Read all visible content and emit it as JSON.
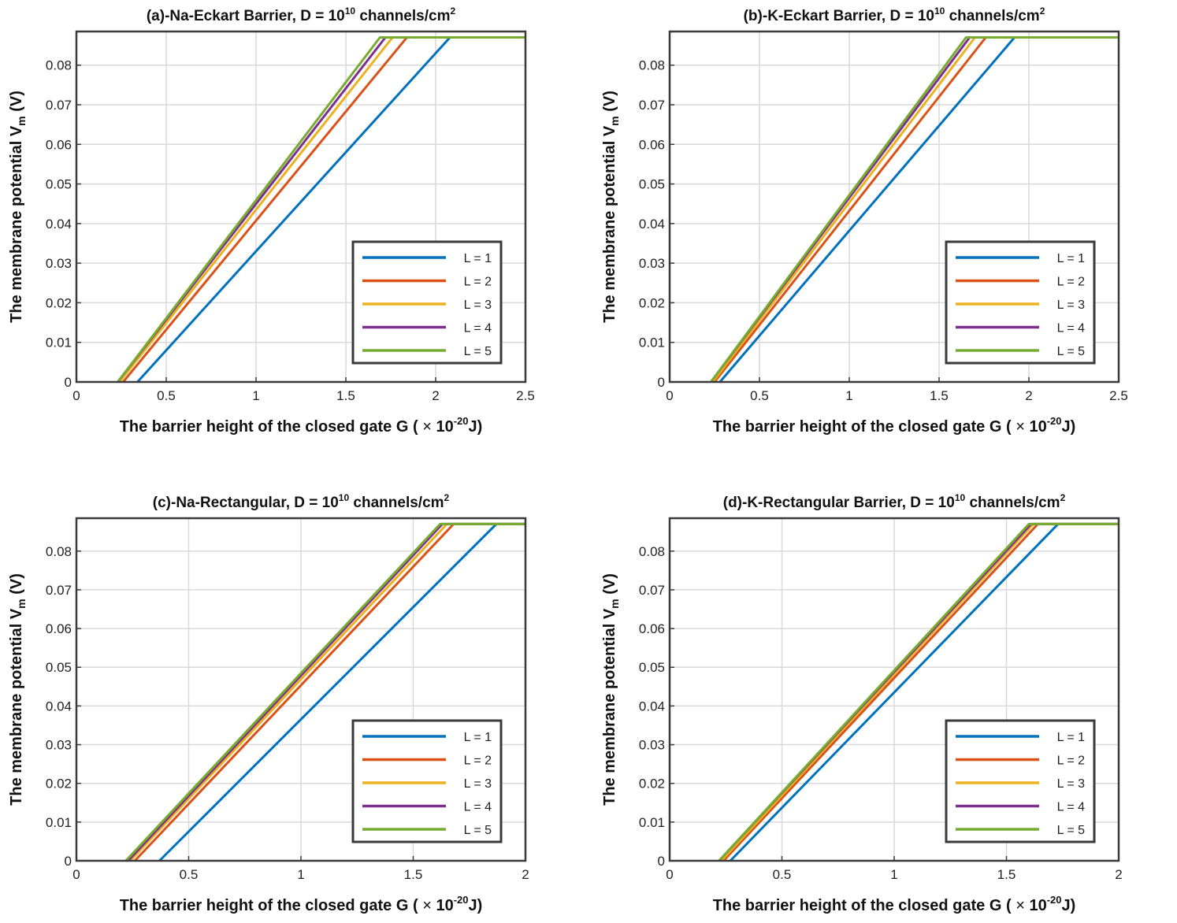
{
  "chart_data": [
    {
      "type": "line",
      "title": {
        "prefix": "(a)-Na-Eckart Barrier,  D = 10",
        "exponent": "10",
        "suffix": " channels/cm",
        "suffix_exp": "2"
      },
      "xlabel": {
        "main": "The barrier height of the closed gate G (",
        "times": "×",
        "base": " 10",
        "exponent": "-20",
        "unit": "J)"
      },
      "ylabel": {
        "main": "The membrane potential  V",
        "sub": "m",
        "unit": "  (V)"
      },
      "xlim": [
        0,
        2.5
      ],
      "ylim": [
        0,
        0.0885
      ],
      "xticks": [
        0,
        0.5,
        1,
        1.5,
        2,
        2.5
      ],
      "xtick_labels": [
        "0",
        "0.5",
        "1",
        "1.5",
        "2",
        "2.5"
      ],
      "yticks": [
        0,
        0.01,
        0.02,
        0.03,
        0.04,
        0.05,
        0.06,
        0.07,
        0.08
      ],
      "ytick_labels": [
        "0",
        "0.01",
        "0.02",
        "0.03",
        "0.04",
        "0.05",
        "0.06",
        "0.07",
        "0.08"
      ],
      "series": [
        {
          "name": "L = 1",
          "color": "#0072BD",
          "x": [
            0.34,
            2.08,
            2.5
          ],
          "y": [
            0,
            0.087,
            0.087
          ]
        },
        {
          "name": "L = 2",
          "color": "#D95319",
          "x": [
            0.26,
            1.84,
            2.5
          ],
          "y": [
            0,
            0.087,
            0.087
          ]
        },
        {
          "name": "L = 3",
          "color": "#EDB120",
          "x": [
            0.24,
            1.76,
            2.5
          ],
          "y": [
            0,
            0.087,
            0.087
          ]
        },
        {
          "name": "L = 4",
          "color": "#7E2F8E",
          "x": [
            0.23,
            1.72,
            2.5
          ],
          "y": [
            0,
            0.087,
            0.087
          ]
        },
        {
          "name": "L = 5",
          "color": "#77AC30",
          "x": [
            0.23,
            1.69,
            2.5
          ],
          "y": [
            0,
            0.087,
            0.087
          ]
        }
      ]
    },
    {
      "type": "line",
      "title": {
        "prefix": "(b)-K-Eckart Barrier,  D = 10",
        "exponent": "10",
        "suffix": " channels/cm",
        "suffix_exp": "2"
      },
      "xlabel": {
        "main": "The barrier height of the closed gate G (",
        "times": "×",
        "base": " 10",
        "exponent": "-20",
        "unit": "J)"
      },
      "ylabel": {
        "main": "The membrane potential  V",
        "sub": "m",
        "unit": "  (V)"
      },
      "xlim": [
        0,
        2.5
      ],
      "ylim": [
        0,
        0.0885
      ],
      "xticks": [
        0,
        0.5,
        1,
        1.5,
        2,
        2.5
      ],
      "xtick_labels": [
        "0",
        "0.5",
        "1",
        "1.5",
        "2",
        "2.5"
      ],
      "yticks": [
        0,
        0.01,
        0.02,
        0.03,
        0.04,
        0.05,
        0.06,
        0.07,
        0.08
      ],
      "ytick_labels": [
        "0",
        "0.01",
        "0.02",
        "0.03",
        "0.04",
        "0.05",
        "0.06",
        "0.07",
        "0.08"
      ],
      "series": [
        {
          "name": "L = 1",
          "color": "#0072BD",
          "x": [
            0.28,
            1.92,
            2.5
          ],
          "y": [
            0,
            0.087,
            0.087
          ]
        },
        {
          "name": "L = 2",
          "color": "#D95319",
          "x": [
            0.25,
            1.76,
            2.5
          ],
          "y": [
            0,
            0.087,
            0.087
          ]
        },
        {
          "name": "L = 3",
          "color": "#EDB120",
          "x": [
            0.24,
            1.7,
            2.5
          ],
          "y": [
            0,
            0.087,
            0.087
          ]
        },
        {
          "name": "L = 4",
          "color": "#7E2F8E",
          "x": [
            0.23,
            1.67,
            2.5
          ],
          "y": [
            0,
            0.087,
            0.087
          ]
        },
        {
          "name": "L = 5",
          "color": "#77AC30",
          "x": [
            0.23,
            1.65,
            2.5
          ],
          "y": [
            0,
            0.087,
            0.087
          ]
        }
      ]
    },
    {
      "type": "line",
      "title": {
        "prefix": "(c)-Na-Rectangular,  D = 10",
        "exponent": "10",
        "suffix": " channels/cm",
        "suffix_exp": "2"
      },
      "xlabel": {
        "main": "The barrier height of the closed gate G (",
        "times": "×",
        "base": " 10",
        "exponent": "-20",
        "unit": "J)"
      },
      "ylabel": {
        "main": "The membrane potential  V",
        "sub": "m",
        "unit": "  (V)"
      },
      "xlim": [
        0,
        2
      ],
      "ylim": [
        0,
        0.0885
      ],
      "xticks": [
        0,
        0.5,
        1,
        1.5,
        2
      ],
      "xtick_labels": [
        "0",
        "0.5",
        "1",
        "1.5",
        "2"
      ],
      "yticks": [
        0,
        0.01,
        0.02,
        0.03,
        0.04,
        0.05,
        0.06,
        0.07,
        0.08
      ],
      "ytick_labels": [
        "0",
        "0.01",
        "0.02",
        "0.03",
        "0.04",
        "0.05",
        "0.06",
        "0.07",
        "0.08"
      ],
      "series": [
        {
          "name": "L = 1",
          "color": "#0072BD",
          "x": [
            0.37,
            1.87,
            2.0
          ],
          "y": [
            0,
            0.087,
            0.087
          ]
        },
        {
          "name": "L = 2",
          "color": "#D95319",
          "x": [
            0.26,
            1.68,
            2.0
          ],
          "y": [
            0,
            0.087,
            0.087
          ]
        },
        {
          "name": "L = 3",
          "color": "#EDB120",
          "x": [
            0.24,
            1.65,
            2.0
          ],
          "y": [
            0,
            0.087,
            0.087
          ]
        },
        {
          "name": "L = 4",
          "color": "#7E2F8E",
          "x": [
            0.23,
            1.63,
            2.0
          ],
          "y": [
            0,
            0.087,
            0.087
          ]
        },
        {
          "name": "L = 5",
          "color": "#77AC30",
          "x": [
            0.22,
            1.62,
            2.0
          ],
          "y": [
            0,
            0.087,
            0.087
          ]
        }
      ]
    },
    {
      "type": "line",
      "title": {
        "prefix": "(d)-K-Rectangular Barrier,  D = 10",
        "exponent": "10",
        "suffix": " channels/cm",
        "suffix_exp": "2"
      },
      "xlabel": {
        "main": "The barrier height of the closed gate G (",
        "times": "×",
        "base": " 10",
        "exponent": "-20",
        "unit": "J)"
      },
      "ylabel": {
        "main": "The membrane potential  V",
        "sub": "m",
        "unit": "  (V)"
      },
      "xlim": [
        0,
        2
      ],
      "ylim": [
        0,
        0.0885
      ],
      "xticks": [
        0,
        0.5,
        1,
        1.5,
        2
      ],
      "xtick_labels": [
        "0",
        "0.5",
        "1",
        "1.5",
        "2"
      ],
      "yticks": [
        0,
        0.01,
        0.02,
        0.03,
        0.04,
        0.05,
        0.06,
        0.07,
        0.08
      ],
      "ytick_labels": [
        "0",
        "0.01",
        "0.02",
        "0.03",
        "0.04",
        "0.05",
        "0.06",
        "0.07",
        "0.08"
      ],
      "series": [
        {
          "name": "L = 1",
          "color": "#0072BD",
          "x": [
            0.27,
            1.73,
            2.0
          ],
          "y": [
            0,
            0.087,
            0.087
          ]
        },
        {
          "name": "L = 2",
          "color": "#D95319",
          "x": [
            0.24,
            1.64,
            2.0
          ],
          "y": [
            0,
            0.087,
            0.087
          ]
        },
        {
          "name": "L = 3",
          "color": "#EDB120",
          "x": [
            0.23,
            1.62,
            2.0
          ],
          "y": [
            0,
            0.087,
            0.087
          ]
        },
        {
          "name": "L = 4",
          "color": "#7E2F8E",
          "x": [
            0.22,
            1.61,
            2.0
          ],
          "y": [
            0,
            0.087,
            0.087
          ]
        },
        {
          "name": "L = 5",
          "color": "#77AC30",
          "x": [
            0.22,
            1.6,
            2.0
          ],
          "y": [
            0,
            0.087,
            0.087
          ]
        }
      ]
    }
  ]
}
